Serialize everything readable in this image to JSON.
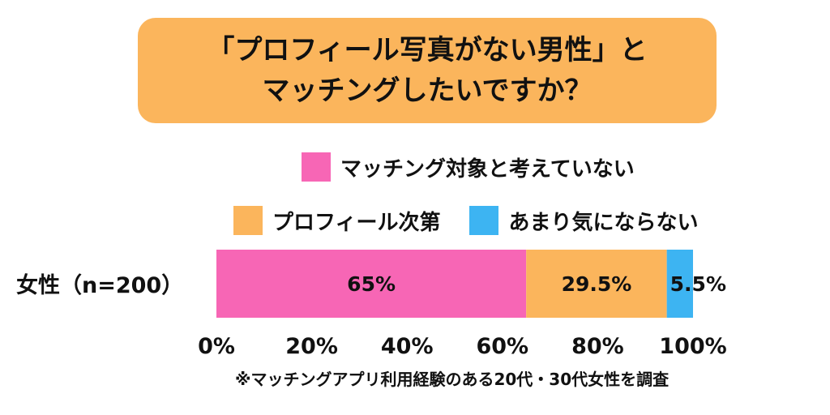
{
  "title": {
    "line1": "「プロフィール写真がない男性」と",
    "line2": "マッチングしたいですか？"
  },
  "colors": {
    "title_bg": "#FBB55C",
    "pink": "#F766B5",
    "orange": "#FBB55C",
    "blue": "#3DB4F2"
  },
  "legend": [
    {
      "label": "マッチング対象と考えていない",
      "color": "#F766B5"
    },
    {
      "label": "プロフィール次第",
      "color": "#FBB55C"
    },
    {
      "label": "あまり気にならない",
      "color": "#3DB4F2"
    }
  ],
  "chart_data": {
    "type": "bar",
    "orientation": "horizontal-stacked",
    "categories": [
      "女性（n=200）"
    ],
    "series": [
      {
        "name": "マッチング対象と考えていない",
        "values": [
          65
        ],
        "label": "65%",
        "color": "#F766B5"
      },
      {
        "name": "プロフィール次第",
        "values": [
          29.5
        ],
        "label": "29.5%",
        "color": "#FBB55C"
      },
      {
        "name": "あまり気にならない",
        "values": [
          5.5
        ],
        "label": "5.5%",
        "color": "#3DB4F2"
      }
    ],
    "xlim": [
      0,
      100
    ],
    "xticks": [
      "0%",
      "20%",
      "40%",
      "60%",
      "80%",
      "100%"
    ],
    "grid": false,
    "legend_position": "top"
  },
  "footnote": "※マッチングアプリ利用経験のある20代・30代女性を調査"
}
